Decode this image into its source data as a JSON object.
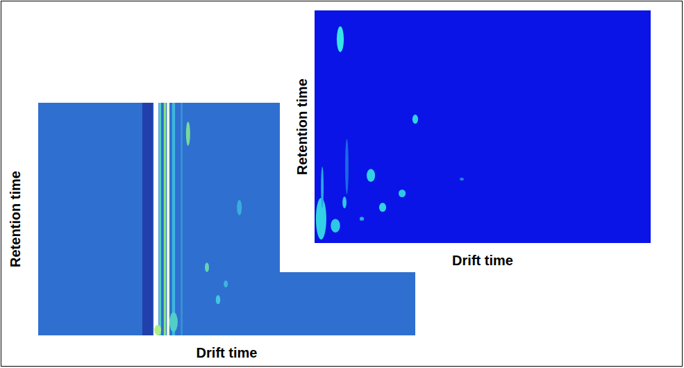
{
  "chart_data": [
    {
      "type": "heatmap",
      "x_label": "Drift time",
      "y_label": "Retention time",
      "tick_labels": false,
      "xlim": [
        0,
        100
      ],
      "ylim": [
        0,
        100
      ],
      "zlim": [
        0,
        1
      ],
      "colors": [
        "#1a2a9a",
        "#2f6fd0",
        "#40c8e0",
        "#9be86a",
        "#ffffff"
      ],
      "background": 0.25,
      "bands": [
        {
          "x": [
            27.6,
            30.4
          ],
          "value": 0.08
        },
        {
          "x": [
            30.6,
            31.9
          ],
          "value": 1.0
        },
        {
          "x": [
            32.0,
            32.6
          ],
          "value": 0.55
        },
        {
          "x": [
            33.3,
            33.9
          ],
          "value": 0.7
        },
        {
          "x": [
            34.1,
            34.8
          ],
          "value": 0.95
        },
        {
          "x": [
            35.5,
            36.3
          ],
          "value": 0.45
        },
        {
          "x": [
            37.8,
            38.3
          ],
          "value": 0.35
        }
      ],
      "spots": [
        {
          "x": [
            39.2,
            40.3
          ],
          "y": [
            81.5,
            91.9
          ],
          "value": 0.65
        },
        {
          "x": [
            52.7,
            54.0
          ],
          "y": [
            51.6,
            58.2
          ],
          "value": 0.42
        },
        {
          "x": [
            44.2,
            45.3
          ],
          "y": [
            27.2,
            31.3
          ],
          "value": 0.6
        },
        {
          "x": [
            49.2,
            50.3
          ],
          "y": [
            20.6,
            23.6
          ],
          "value": 0.45
        },
        {
          "x": [
            47.1,
            48.3
          ],
          "y": [
            13.4,
            17.3
          ],
          "value": 0.5
        },
        {
          "x": [
            34.8,
            37.0
          ],
          "y": [
            1.5,
            9.9
          ],
          "value": 0.55
        },
        {
          "x": [
            30.8,
            32.6
          ],
          "y": [
            0,
            4.5
          ],
          "value": 0.8
        }
      ]
    },
    {
      "type": "heatmap",
      "x_label": "Drift time",
      "y_label": "Retention time",
      "tick_labels": false,
      "xlim": [
        0,
        100
      ],
      "ylim": [
        0,
        100
      ],
      "zlim": [
        0,
        1
      ],
      "colors": [
        "#0a14e6",
        "#36e6e6"
      ],
      "background": 0,
      "spots": [
        {
          "x": [
            6.6,
            8.7
          ],
          "y": [
            82.1,
            93.1
          ],
          "value": 1.0
        },
        {
          "x": [
            29.1,
            30.8
          ],
          "y": [
            51.3,
            55.2
          ],
          "value": 0.9
        },
        {
          "x": [
            15.5,
            18.0
          ],
          "y": [
            26.3,
            31.9
          ],
          "value": 0.9
        },
        {
          "x": [
            19.2,
            21.3
          ],
          "y": [
            13.4,
            17.3
          ],
          "value": 0.9
        },
        {
          "x": [
            25.0,
            27.1
          ],
          "y": [
            19.7,
            23.0
          ],
          "value": 0.85
        },
        {
          "x": [
            8.3,
            9.5
          ],
          "y": [
            14.9,
            20.0
          ],
          "value": 0.85
        },
        {
          "x": [
            0.4,
            3.5
          ],
          "y": [
            1.5,
            19.4
          ],
          "value": 0.9
        },
        {
          "x": [
            4.8,
            7.6
          ],
          "y": [
            4.5,
            10.4
          ],
          "value": 0.85
        },
        {
          "x": [
            13.4,
            14.7
          ],
          "y": [
            9.6,
            11.3
          ],
          "value": 0.7
        },
        {
          "x": [
            43.2,
            44.4
          ],
          "y": [
            26.9,
            28.1
          ],
          "value": 0.5
        },
        {
          "x": [
            9.1,
            10.1
          ],
          "y": [
            20.9,
            44.8
          ],
          "value": 0.4
        },
        {
          "x": [
            1.9,
            2.7
          ],
          "y": [
            14.9,
            32.8
          ],
          "value": 0.7
        }
      ]
    }
  ]
}
